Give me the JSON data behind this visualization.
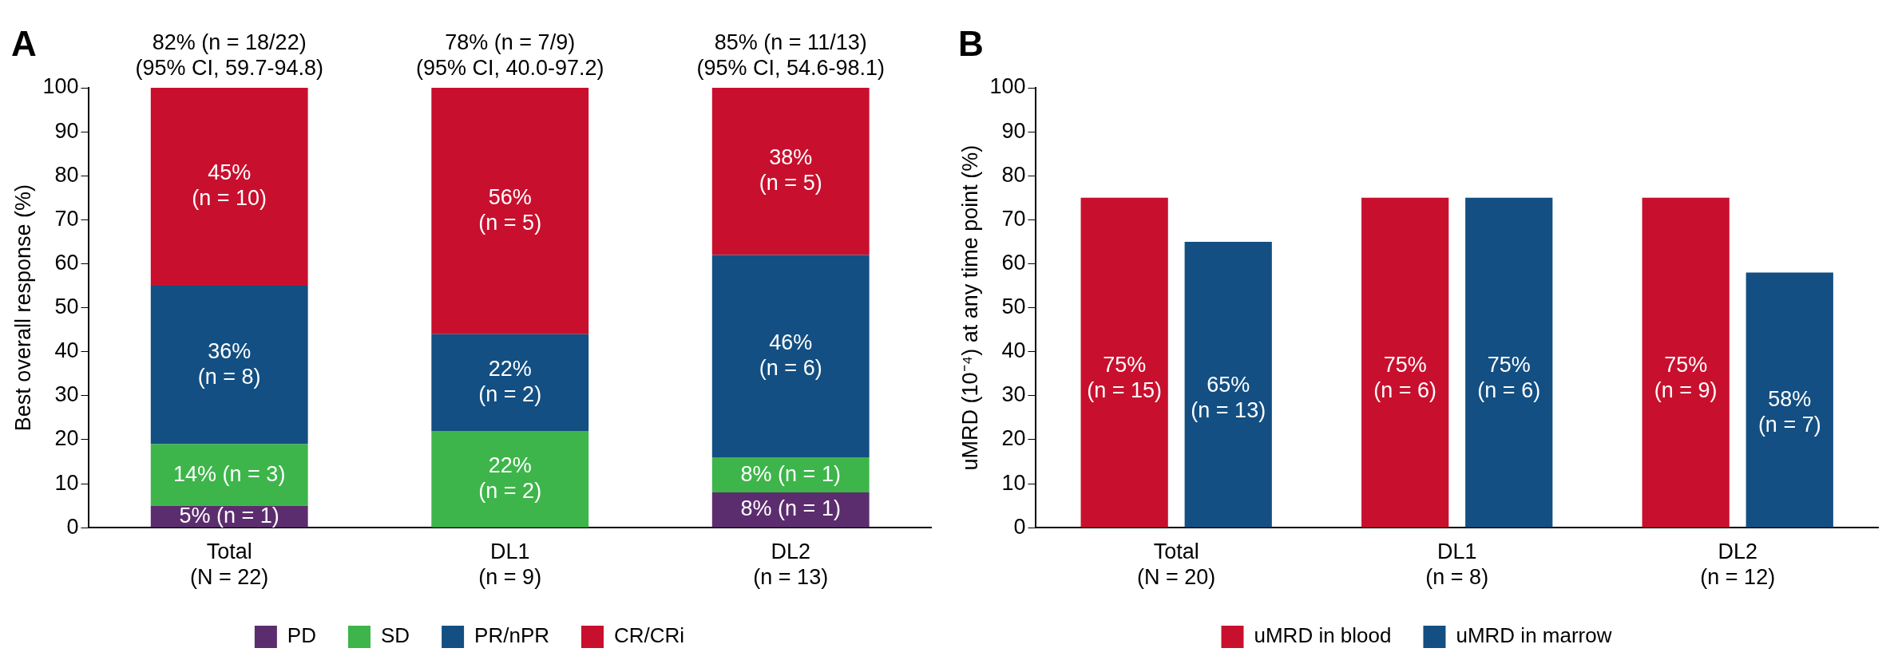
{
  "chart_data": [
    {
      "type": "bar",
      "stacked": true,
      "ylabel": "Best overall response (%)",
      "categories": [
        "Total (N = 22)",
        "DL1 (n = 9)",
        "DL2 (n = 13)"
      ],
      "ylim": [
        0,
        100
      ],
      "yticks": [
        0,
        10,
        20,
        30,
        40,
        50,
        60,
        70,
        80,
        90,
        100
      ],
      "grid": false,
      "legend": "bottom",
      "series": [
        {
          "name": "PD",
          "color": "#5c2d6e",
          "values": [
            5,
            0,
            8
          ],
          "value_labels": [
            "5% (n = 1)",
            null,
            "8% (n = 1)"
          ]
        },
        {
          "name": "SD",
          "color": "#3db54a",
          "values": [
            14,
            22,
            8
          ],
          "value_labels": [
            "14% (n = 3)",
            "22% (n = 2)",
            "8% (n = 1)"
          ]
        },
        {
          "name": "PR/nPR",
          "color": "#134f82",
          "values": [
            36,
            22,
            46
          ],
          "value_labels": [
            "36% (n = 8)",
            "22% (n = 2)",
            "46% (n = 6)"
          ]
        },
        {
          "name": "CR/CRi",
          "color": "#c8102e",
          "values": [
            45,
            56,
            38
          ],
          "value_labels": [
            "45% (n = 10)",
            "56% (n = 5)",
            "38% (n = 5)"
          ]
        }
      ],
      "annotations": [
        "A",
        {
          "text": "82% (n = 18/22) (95% CI, 59.7-94.8)",
          "x": "Total (N = 22)",
          "y": 100
        },
        {
          "text": "78% (n = 7/9) (95% CI, 40.0-97.2)",
          "x": "DL1 (n = 9)",
          "y": 100
        },
        {
          "text": "85% (n = 11/13) (95% CI, 54.6-98.1)",
          "x": "DL2 (n = 13)",
          "y": 100
        }
      ]
    },
    {
      "type": "bar",
      "ylabel": "uMRD (10⁻⁴) at any time point (%)",
      "categories": [
        "Total (N = 20)",
        "DL1 (n = 8)",
        "DL2 (n = 12)"
      ],
      "ylim": [
        0,
        100
      ],
      "yticks": [
        0,
        10,
        20,
        30,
        40,
        50,
        60,
        70,
        80,
        90,
        100
      ],
      "grid": false,
      "legend": "bottom",
      "series": [
        {
          "name": "uMRD in blood",
          "color": "#c8102e",
          "values": [
            75,
            75,
            75
          ],
          "value_labels": [
            "75% (n = 15)",
            "75% (n = 6)",
            "75% (n = 9)"
          ]
        },
        {
          "name": "uMRD in marrow",
          "color": "#134f82",
          "values": [
            65,
            75,
            58
          ],
          "value_labels": [
            "65% (n = 13)",
            "75% (n = 6)",
            "58% (n = 7)"
          ]
        }
      ],
      "annotations": [
        "B"
      ]
    }
  ]
}
